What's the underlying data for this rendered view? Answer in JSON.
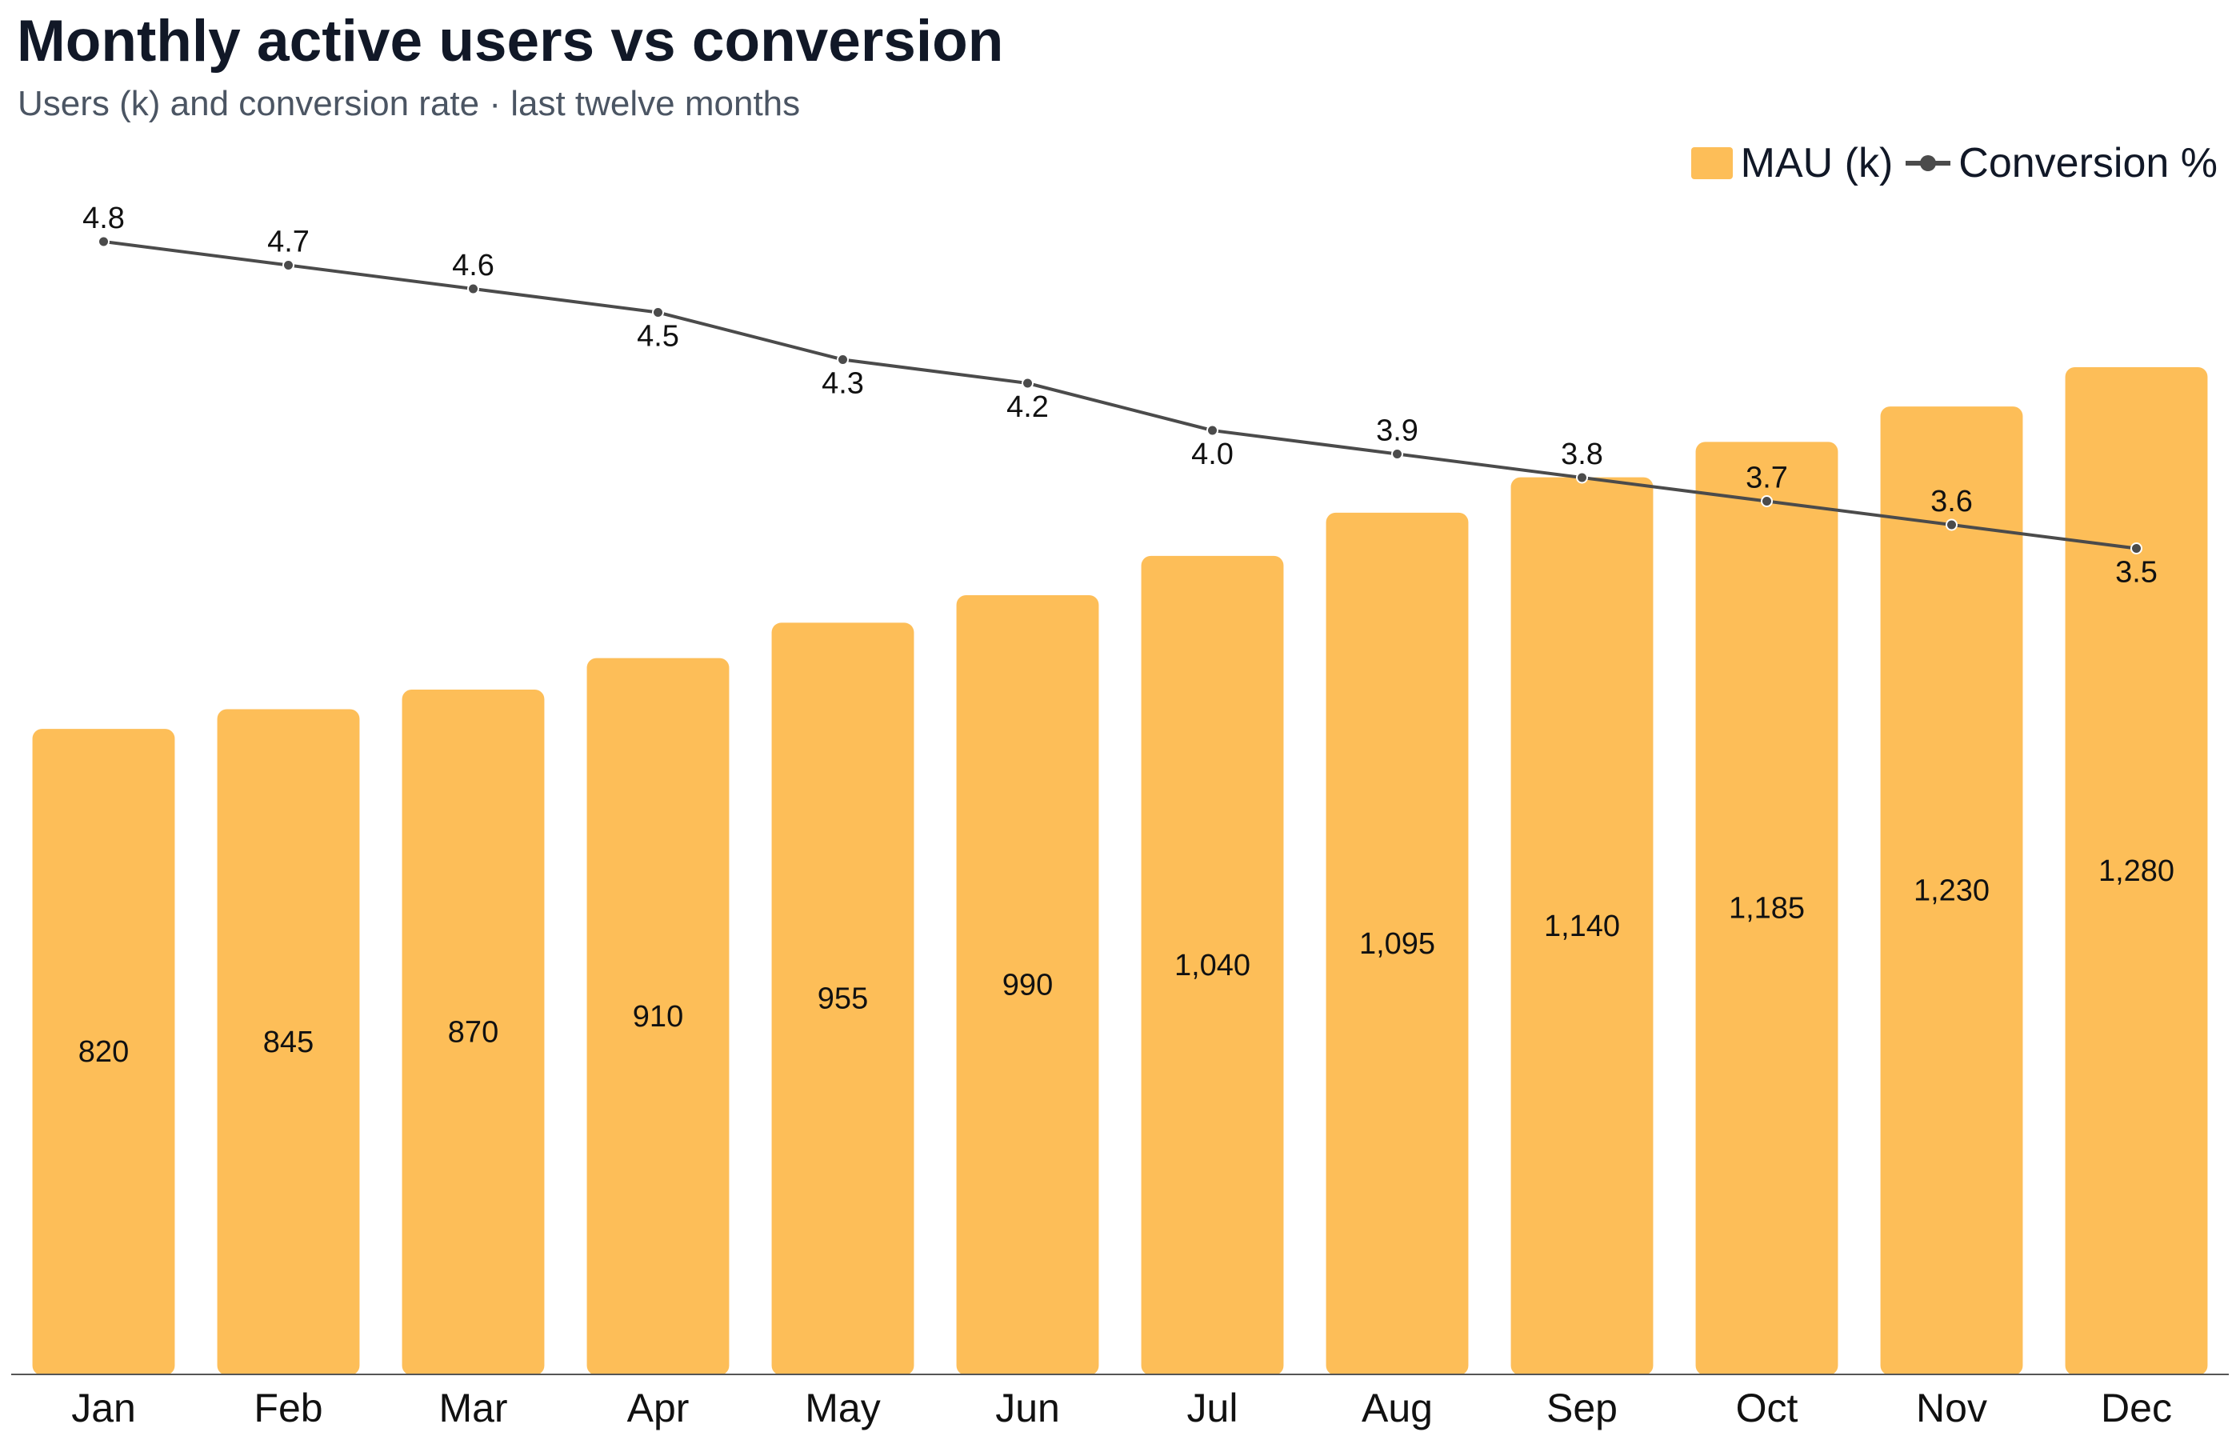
{
  "title": "Monthly active users vs conversion",
  "subtitle": "Users (k) and conversion rate · last twelve months",
  "colors": {
    "bar": "#fdbe58",
    "line": "#4b4b4b",
    "point_stroke": "#ffffff",
    "axis": "#555555"
  },
  "chart_data": {
    "type": "bar",
    "categories": [
      "Jan",
      "Feb",
      "Mar",
      "Apr",
      "May",
      "Jun",
      "Jul",
      "Aug",
      "Sep",
      "Oct",
      "Nov",
      "Dec"
    ],
    "series": [
      {
        "name": "MAU (k)",
        "type": "bar",
        "values": [
          820,
          845,
          870,
          910,
          955,
          990,
          1040,
          1095,
          1140,
          1185,
          1230,
          1280
        ],
        "labels": [
          "820",
          "845",
          "870",
          "910",
          "955",
          "990",
          "1,040",
          "1,095",
          "1,140",
          "1,185",
          "1,230",
          "1,280"
        ]
      },
      {
        "name": "Conversion %",
        "type": "line",
        "values": [
          4.8,
          4.7,
          4.6,
          4.5,
          4.3,
          4.2,
          4.0,
          3.9,
          3.8,
          3.7,
          3.6,
          3.5
        ],
        "labels": [
          "4.8",
          "4.7",
          "4.6",
          "4.5",
          "4.3",
          "4.2",
          "4.0",
          "3.9",
          "3.8",
          "3.7",
          "3.6",
          "3.5"
        ],
        "label_positions": [
          "above",
          "above",
          "above",
          "below",
          "below",
          "below",
          "below",
          "above",
          "above",
          "above",
          "above",
          "below"
        ]
      }
    ],
    "xlabel": "",
    "ylabel": "",
    "legend": "top-right",
    "grid": false
  }
}
